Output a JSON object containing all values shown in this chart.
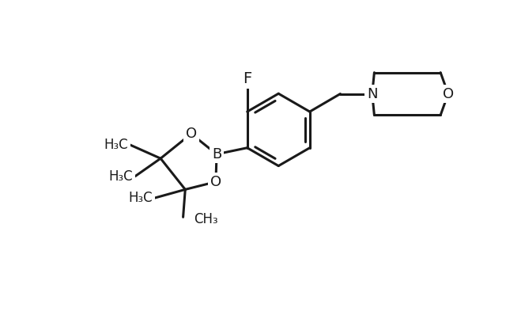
{
  "bg_color": "#ffffff",
  "line_color": "#1a1a1a",
  "line_width": 2.2,
  "font_size": 13,
  "fig_width": 6.4,
  "fig_height": 4.03,
  "dpi": 100,
  "xlim": [
    -3.8,
    6.2
  ],
  "ylim": [
    -4.2,
    3.2
  ]
}
